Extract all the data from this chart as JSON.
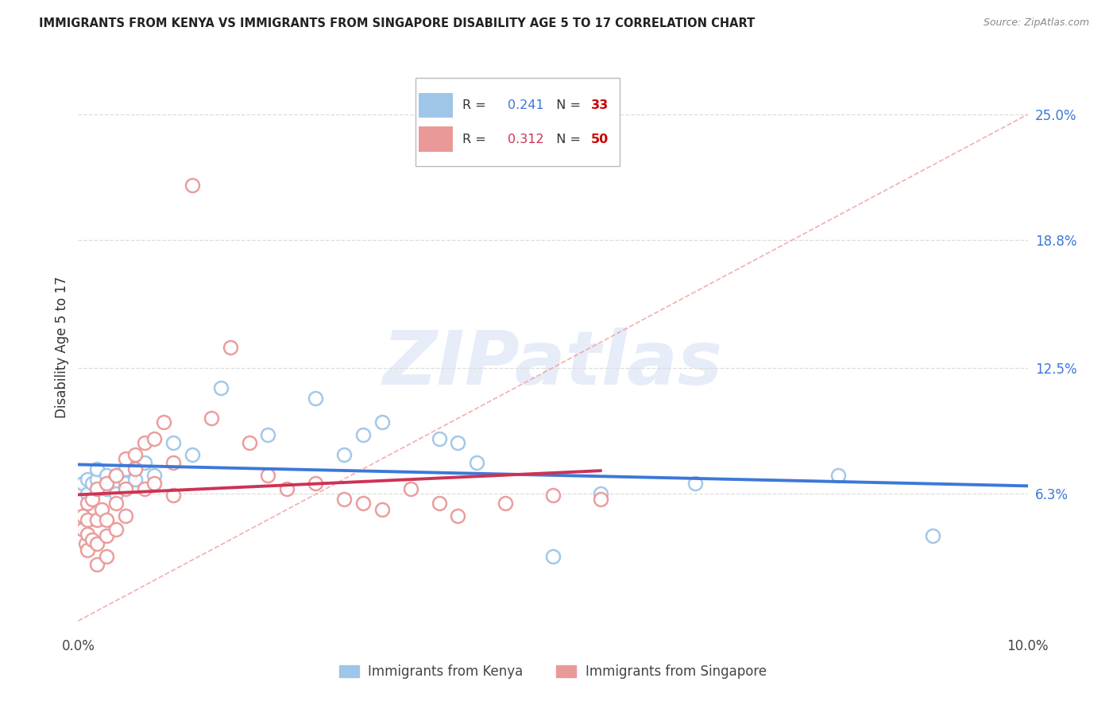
{
  "title": "IMMIGRANTS FROM KENYA VS IMMIGRANTS FROM SINGAPORE DISABILITY AGE 5 TO 17 CORRELATION CHART",
  "source": "Source: ZipAtlas.com",
  "ylabel": "Disability Age 5 to 17",
  "xlim": [
    0.0,
    0.1
  ],
  "ylim": [
    -0.005,
    0.275
  ],
  "yticks": [
    0.063,
    0.125,
    0.188,
    0.25
  ],
  "ytick_labels": [
    "6.3%",
    "12.5%",
    "18.8%",
    "25.0%"
  ],
  "xtick_vals": [
    0.0,
    0.01,
    0.02,
    0.03,
    0.04,
    0.05,
    0.06,
    0.07,
    0.08,
    0.09,
    0.1
  ],
  "xtick_labels": [
    "0.0%",
    "",
    "",
    "",
    "",
    "",
    "",
    "",
    "",
    "",
    "10.0%"
  ],
  "kenya_R": 0.241,
  "kenya_N": 33,
  "singapore_R": 0.312,
  "singapore_N": 50,
  "kenya_color": "#9fc5e8",
  "singapore_color": "#ea9999",
  "kenya_line_color": "#3c78d8",
  "singapore_line_color": "#cc3355",
  "ref_line_color": "#f4a0a0",
  "background_color": "#ffffff",
  "grid_color": "#dddddd",
  "watermark": "ZIPatlas",
  "legend_R_color_kenya": "#3c78d8",
  "legend_N_color_kenya": "#cc0000",
  "legend_R_color_singapore": "#cc3355",
  "legend_N_color_singapore": "#cc0000",
  "legend_kenya_label": "Immigrants from Kenya",
  "legend_singapore_label": "Immigrants from Singapore",
  "kenya_x": [
    0.0005,
    0.001,
    0.001,
    0.0015,
    0.002,
    0.002,
    0.002,
    0.003,
    0.003,
    0.003,
    0.004,
    0.004,
    0.005,
    0.005,
    0.006,
    0.007,
    0.008,
    0.01,
    0.012,
    0.015,
    0.02,
    0.025,
    0.028,
    0.03,
    0.032,
    0.038,
    0.04,
    0.042,
    0.05,
    0.055,
    0.065,
    0.08,
    0.09
  ],
  "kenya_y": [
    0.068,
    0.063,
    0.07,
    0.068,
    0.065,
    0.07,
    0.075,
    0.068,
    0.072,
    0.065,
    0.063,
    0.072,
    0.068,
    0.075,
    0.07,
    0.078,
    0.072,
    0.088,
    0.082,
    0.115,
    0.092,
    0.11,
    0.082,
    0.092,
    0.098,
    0.09,
    0.088,
    0.078,
    0.032,
    0.063,
    0.068,
    0.072,
    0.042
  ],
  "singapore_x": [
    0.0003,
    0.0005,
    0.0005,
    0.0008,
    0.001,
    0.001,
    0.001,
    0.001,
    0.0015,
    0.0015,
    0.002,
    0.002,
    0.002,
    0.002,
    0.0025,
    0.003,
    0.003,
    0.003,
    0.003,
    0.004,
    0.004,
    0.004,
    0.005,
    0.005,
    0.005,
    0.006,
    0.006,
    0.007,
    0.007,
    0.008,
    0.008,
    0.009,
    0.01,
    0.01,
    0.012,
    0.014,
    0.016,
    0.018,
    0.02,
    0.022,
    0.025,
    0.028,
    0.03,
    0.032,
    0.035,
    0.038,
    0.04,
    0.045,
    0.05,
    0.055
  ],
  "singapore_y": [
    0.048,
    0.045,
    0.052,
    0.038,
    0.058,
    0.043,
    0.05,
    0.035,
    0.06,
    0.04,
    0.065,
    0.05,
    0.038,
    0.028,
    0.055,
    0.068,
    0.05,
    0.042,
    0.032,
    0.072,
    0.058,
    0.045,
    0.08,
    0.065,
    0.052,
    0.075,
    0.082,
    0.088,
    0.065,
    0.09,
    0.068,
    0.098,
    0.078,
    0.062,
    0.215,
    0.1,
    0.135,
    0.088,
    0.072,
    0.065,
    0.068,
    0.06,
    0.058,
    0.055,
    0.065,
    0.058,
    0.052,
    0.058,
    0.062,
    0.06
  ]
}
